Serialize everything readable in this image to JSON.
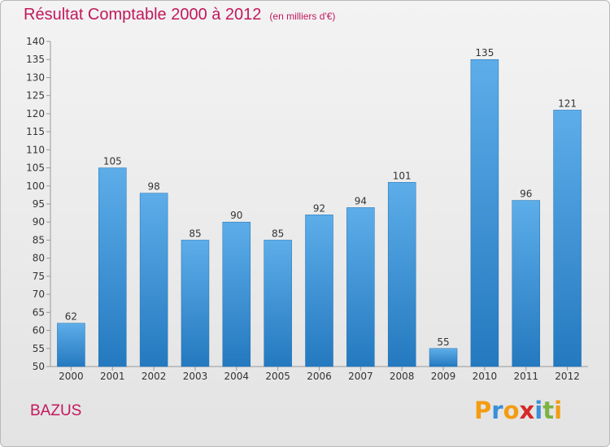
{
  "title": "Résultat Comptable 2000 à 2012",
  "unit_label": "(en milliers d'€)",
  "commune": "BAZUS",
  "logo": {
    "letters": [
      "P",
      "r",
      "o",
      "x",
      "i",
      "t",
      "i"
    ],
    "colors": [
      "#f39c12",
      "#3a8fd8",
      "#f39c12",
      "#d62828",
      "#3a8fd8",
      "#7cb342",
      "#f39c12"
    ]
  },
  "colors": {
    "bar_top": "#5dade9",
    "bar_bottom": "#2479bf",
    "title": "#c2185b"
  },
  "chart_data": {
    "type": "bar",
    "title": "Résultat Comptable 2000 à 2012",
    "xlabel": "",
    "ylabel": "",
    "categories": [
      "2000",
      "2001",
      "2002",
      "2003",
      "2004",
      "2005",
      "2006",
      "2007",
      "2008",
      "2009",
      "2010",
      "2011",
      "2012"
    ],
    "values": [
      62,
      105,
      98,
      85,
      90,
      85,
      92,
      94,
      101,
      55,
      135,
      96,
      121
    ],
    "ylim": [
      50,
      140
    ],
    "yticks": [
      50,
      55,
      60,
      65,
      70,
      75,
      80,
      85,
      90,
      95,
      100,
      105,
      110,
      115,
      120,
      125,
      130,
      135,
      140
    ],
    "grid": false
  }
}
